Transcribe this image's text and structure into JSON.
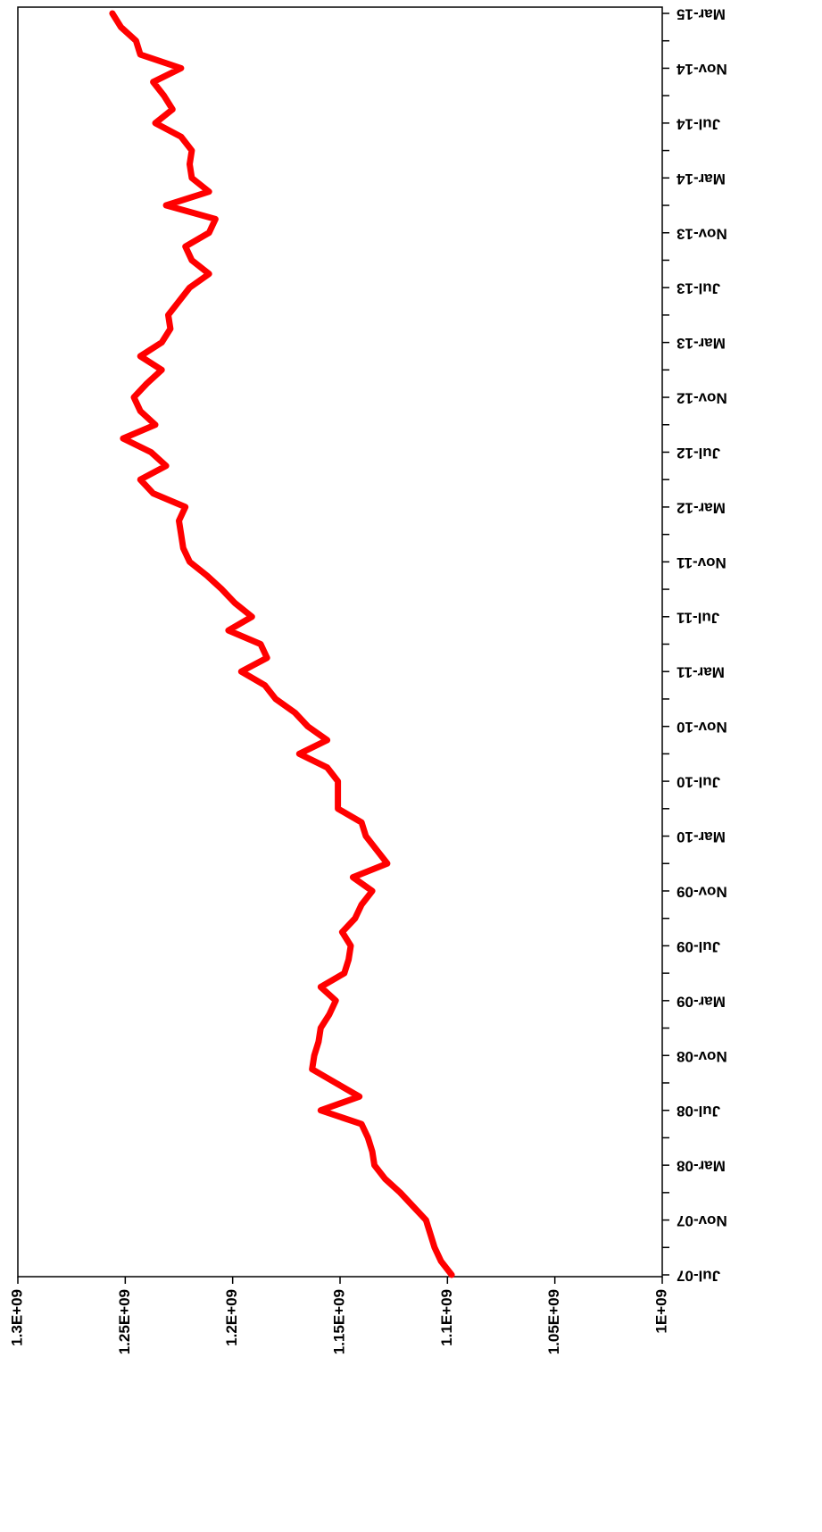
{
  "chart_data": {
    "type": "line",
    "categories": [
      "Jul-07",
      null,
      null,
      null,
      "Nov-07",
      null,
      null,
      null,
      "Mar-08",
      null,
      null,
      null,
      "Jul-08",
      null,
      null,
      null,
      "Nov-08",
      null,
      null,
      null,
      "Mar-09",
      null,
      null,
      null,
      "Jul-09",
      null,
      null,
      null,
      "Nov-09",
      null,
      null,
      null,
      "Mar-10",
      null,
      null,
      null,
      "Jul-10",
      null,
      null,
      null,
      "Nov-10",
      null,
      null,
      null,
      "Mar-11",
      null,
      null,
      null,
      "Jul-11",
      null,
      null,
      null,
      "Nov-11",
      null,
      null,
      null,
      "Mar-12",
      null,
      null,
      null,
      "Jul-12",
      null,
      null,
      null,
      "Nov-12",
      null,
      null,
      null,
      "Mar-13",
      null,
      null,
      null,
      "Jul-13",
      null,
      null,
      null,
      "Nov-13",
      null,
      null,
      null,
      "Mar-14",
      null,
      null,
      null,
      "Jul-14",
      null,
      null,
      null,
      "Nov-14",
      null,
      null,
      null,
      "Mar-15"
    ],
    "values": [
      1098000000.0,
      1103000000.0,
      1106000000.0,
      1108000000.0,
      1110000000.0,
      1116000000.0,
      1122000000.0,
      1129000000.0,
      1134000000.0,
      1135000000.0,
      1137000000.0,
      1140000000.0,
      1159000000.0,
      1141000000.0,
      1152000000.0,
      1163000000.0,
      1162000000.0,
      1160000000.0,
      1159000000.0,
      1155000000.0,
      1152000000.0,
      1159000000.0,
      1148000000.0,
      1146000000.0,
      1145000000.0,
      1149000000.0,
      1143000000.0,
      1140000000.0,
      1135000000.0,
      1144000000.0,
      1128000000.0,
      1133000000.0,
      1138000000.0,
      1140000000.0,
      1151000000.0,
      1151000000.0,
      1151000000.0,
      1156000000.0,
      1169000000.0,
      1156000000.0,
      1165000000.0,
      1171000000.0,
      1180000000.0,
      1185000000.0,
      1196000000.0,
      1184000000.0,
      1187000000.0,
      1202000000.0,
      1191000000.0,
      1199000000.0,
      1205000000.0,
      1212000000.0,
      1220000000.0,
      1223000000.0,
      1224000000.0,
      1225000000.0,
      1222000000.0,
      1237000000.0,
      1243000000.0,
      1231000000.0,
      1238000000.0,
      1251000000.0,
      1236000000.0,
      1243000000.0,
      1246000000.0,
      1240000000.0,
      1233000000.0,
      1243000000.0,
      1233000000.0,
      1229000000.0,
      1230000000.0,
      1225000000.0,
      1220000000.0,
      1211000000.0,
      1219000000.0,
      1222000000.0,
      1211000000.0,
      1208000000.0,
      1231000000.0,
      1211000000.0,
      1219000000.0,
      1220000000.0,
      1219000000.0,
      1224000000.0,
      1236000000.0,
      1228000000.0,
      1232000000.0,
      1237000000.0,
      1224000000.0,
      1243000000.0,
      1245000000.0,
      1252000000.0,
      1256000000.0
    ],
    "color": "#ff0000",
    "ylim": [
      1000000000,
      1300000000
    ],
    "yticks": [
      {
        "value": 1300000000,
        "label": "1.3E+09"
      },
      {
        "value": 1250000000,
        "label": "1.25E+09"
      },
      {
        "value": 1200000000,
        "label": "1.2E+09"
      },
      {
        "value": 1150000000,
        "label": "1.15E+09"
      },
      {
        "value": 1100000000,
        "label": "1.1E+09"
      },
      {
        "value": 1050000000,
        "label": "1.05E+09"
      },
      {
        "value": 1000000000,
        "label": "1E+09"
      }
    ],
    "grid": false
  }
}
